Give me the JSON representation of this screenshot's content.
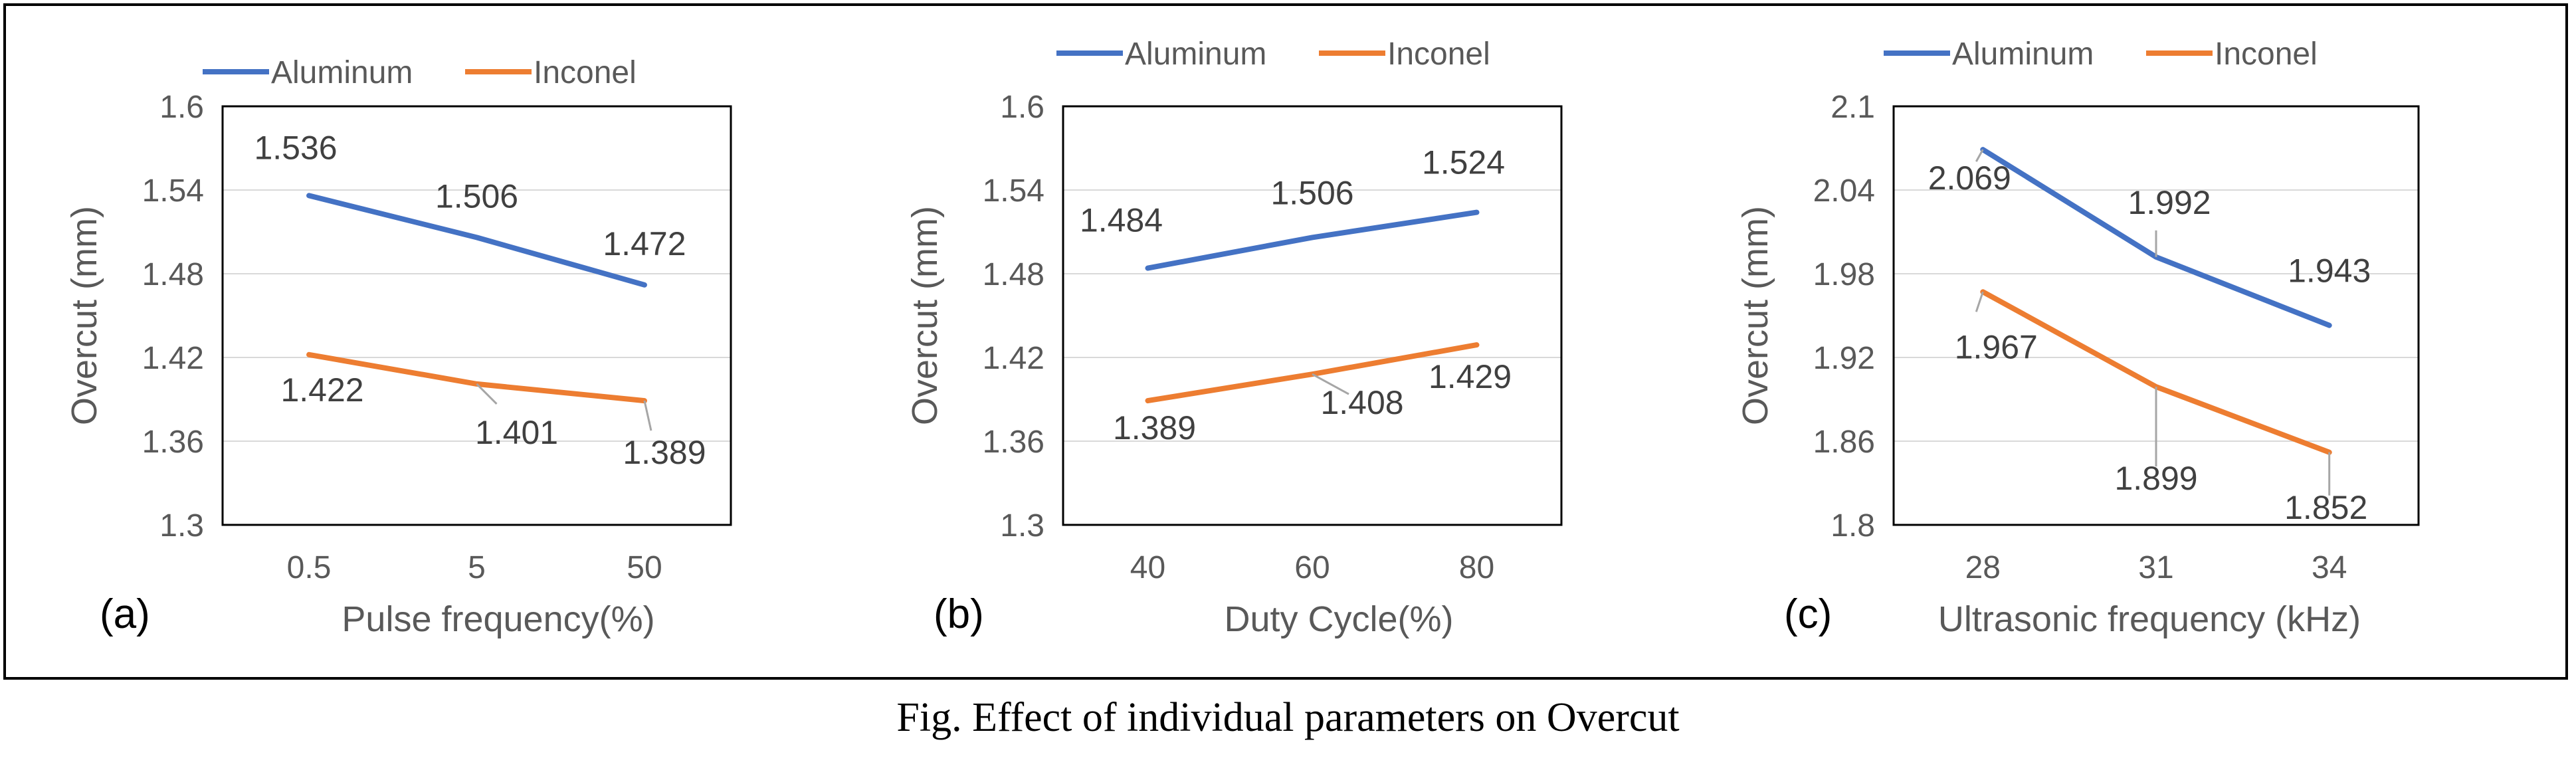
{
  "caption": "Fig. Effect of individual parameters on Overcut",
  "colors": {
    "aluminum": "#4472C4",
    "inconel": "#ED7D31",
    "axis": "#595959",
    "grid": "#d9d9d9"
  },
  "chart_data": [
    {
      "type": "line",
      "panel_label": "(a)",
      "categories": [
        "0.5",
        "5",
        "50"
      ],
      "xlabel": "Pulse frequency(%)",
      "ylabel": "Overcut (mm)",
      "ylim": [
        1.3,
        1.6
      ],
      "yticks": [
        "1.3",
        "1.36",
        "1.42",
        "1.48",
        "1.54",
        "1.6"
      ],
      "legend": "top",
      "series": [
        {
          "name": "Aluminum",
          "values": [
            1.536,
            1.506,
            1.472
          ],
          "labels": [
            "1.536",
            "1.506",
            "1.472"
          ]
        },
        {
          "name": "Inconel",
          "values": [
            1.422,
            1.401,
            1.389
          ],
          "labels": [
            "1.422",
            "1.401",
            "1.389"
          ]
        }
      ]
    },
    {
      "type": "line",
      "panel_label": "(b)",
      "categories": [
        "40",
        "60",
        "80"
      ],
      "xlabel": "Duty Cycle(%)",
      "ylabel": "Overcut (mm)",
      "ylim": [
        1.3,
        1.6
      ],
      "yticks": [
        "1.3",
        "1.36",
        "1.42",
        "1.48",
        "1.54",
        "1.6"
      ],
      "legend": "top",
      "series": [
        {
          "name": "Aluminum",
          "values": [
            1.484,
            1.506,
            1.524
          ],
          "labels": [
            "1.484",
            "1.506",
            "1.524"
          ]
        },
        {
          "name": "Inconel",
          "values": [
            1.389,
            1.408,
            1.429
          ],
          "labels": [
            "1.389",
            "1.408",
            "1.429"
          ]
        }
      ]
    },
    {
      "type": "line",
      "panel_label": "(c)",
      "categories": [
        "28",
        "31",
        "34"
      ],
      "xlabel": "Ultrasonic frequency (kHz)",
      "ylabel": "Overcut (mm)",
      "ylim": [
        1.8,
        2.1
      ],
      "yticks": [
        "1.8",
        "1.86",
        "1.92",
        "1.98",
        "2.04",
        "2.1"
      ],
      "legend": "top",
      "series": [
        {
          "name": "Aluminum",
          "values": [
            2.069,
            1.992,
            1.943
          ],
          "labels": [
            "2.069",
            "1.992",
            "1.943"
          ]
        },
        {
          "name": "Inconel",
          "values": [
            1.967,
            1.899,
            1.852
          ],
          "labels": [
            "1.967",
            "1.899",
            "1.852"
          ]
        }
      ]
    }
  ]
}
